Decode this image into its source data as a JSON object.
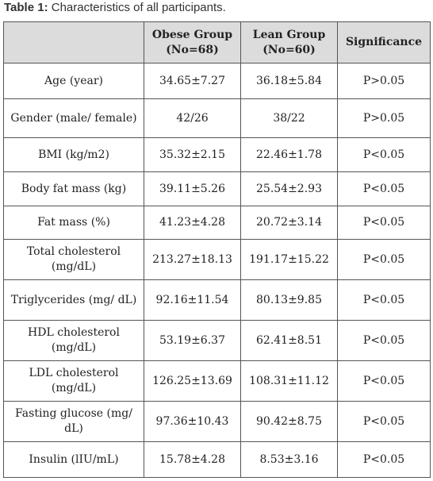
{
  "caption": {
    "label": "Table 1:",
    "text": " Characteristics of all participants."
  },
  "table": {
    "headers": [
      "",
      "Obese Group (No=68)",
      "Lean Group (No=60)",
      "Significance"
    ],
    "rows": [
      {
        "cells": [
          "Age (year)",
          "34.65±7.27",
          "36.18±5.84",
          "P>0.05"
        ]
      },
      {
        "cells": [
          "Gender (male/ female)",
          "42/26",
          "38/22",
          "P>0.05"
        ]
      },
      {
        "cells": [
          "BMI (kg/m2)",
          "35.32±2.15",
          "22.46±1.78",
          "P<0.05"
        ]
      },
      {
        "cells": [
          "Body fat mass (kg)",
          "39.11±5.26",
          "25.54±2.93",
          "P<0.05"
        ]
      },
      {
        "cells": [
          "Fat mass (%)",
          "41.23±4.28",
          "20.72±3.14",
          "P<0.05"
        ]
      },
      {
        "cells": [
          "Total cholesterol (mg/dL)",
          "213.27±18.13",
          "191.17±15.22",
          "P<0.05"
        ]
      },
      {
        "cells": [
          "Triglycerides (mg/ dL)",
          "92.16±11.54",
          "80.13±9.85",
          "P<0.05"
        ]
      },
      {
        "cells": [
          "HDL cholesterol (mg/dL)",
          "53.19±6.37",
          "62.41±8.51",
          "P<0.05"
        ]
      },
      {
        "cells": [
          "LDL cholesterol (mg/dL)",
          "126.25±13.69",
          "108.31±11.12",
          "P<0.05"
        ]
      },
      {
        "cells": [
          "Fasting glucose (mg/ dL)",
          "97.36±10.43",
          "90.42±8.75",
          "P<0.05"
        ]
      },
      {
        "cells": [
          "Insulin (lIU/mL)",
          "15.78±4.28",
          "8.53±3.16",
          "P<0.05"
        ]
      }
    ]
  }
}
